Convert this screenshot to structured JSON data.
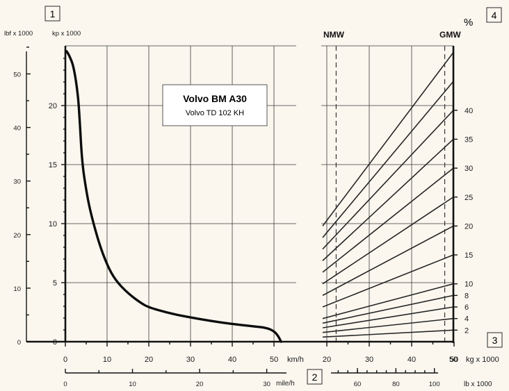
{
  "markers": {
    "m1": "1",
    "m2": "2",
    "m3": "3",
    "m4": "4"
  },
  "title": {
    "line1": "Volvo BM A30",
    "line2": "Volvo TD 102 KH"
  },
  "units": {
    "lbf": "lbf x 1000",
    "kp": "kp x 1000",
    "kmh": "km/h",
    "mileh": "mile/h",
    "kg": "kg x 1000",
    "lb": "lb x 1000",
    "pct": "%",
    "nmw": "NMW",
    "gmw": "GMW"
  },
  "chart_data": [
    {
      "type": "line",
      "name": "rimpull",
      "x_unit": "km/h",
      "y_unit": "kp x 1000",
      "xlim": [
        0,
        52
      ],
      "ylim": [
        0,
        25
      ],
      "x_ticks": [
        "0",
        "10",
        "20",
        "30",
        "40",
        "50"
      ],
      "y_ticks": [
        "0",
        "5",
        "10",
        "15",
        "20"
      ],
      "y2_unit": "lbf x 1000",
      "y2_ticks": [
        "0",
        "10",
        "20",
        "30",
        "40",
        "50"
      ],
      "x2_unit": "mile/h",
      "x2_ticks": [
        "0",
        "10",
        "20",
        "30"
      ],
      "points": [
        [
          0.3,
          24.6
        ],
        [
          1.0,
          24.2
        ],
        [
          2.0,
          23.3
        ],
        [
          3.0,
          21.0
        ],
        [
          3.4,
          19.0
        ],
        [
          4.0,
          15.2
        ],
        [
          5.0,
          12.8
        ],
        [
          6.0,
          11.0
        ],
        [
          8.0,
          8.4
        ],
        [
          10.0,
          6.5
        ],
        [
          12.0,
          5.2
        ],
        [
          15.0,
          4.1
        ],
        [
          18.0,
          3.3
        ],
        [
          20.0,
          2.9
        ],
        [
          25.0,
          2.4
        ],
        [
          30.0,
          2.05
        ],
        [
          35.0,
          1.75
        ],
        [
          40.0,
          1.5
        ],
        [
          45.0,
          1.3
        ],
        [
          48.0,
          1.2
        ],
        [
          50.0,
          0.9
        ],
        [
          51.0,
          0.5
        ],
        [
          51.7,
          0.0
        ]
      ]
    },
    {
      "type": "line",
      "name": "grade_lines",
      "x_unit": "kg x 1000",
      "xlim": [
        20,
        50
      ],
      "x_ticks": [
        "20",
        "30",
        "40",
        "50"
      ],
      "x2_unit": "lb x 1000",
      "x2_ticks": [
        "60",
        "80",
        "100"
      ],
      "y_unit": "%",
      "pct_labels": [
        {
          "text": "2",
          "pct": 2
        },
        {
          "text": "4",
          "pct": 4
        },
        {
          "text": "6",
          "pct": 6
        },
        {
          "text": "8",
          "pct": 8
        },
        {
          "text": "10",
          "pct": 10
        },
        {
          "text": "15",
          "pct": 15
        },
        {
          "text": "20",
          "pct": 20
        },
        {
          "text": "25",
          "pct": 25
        },
        {
          "text": "30",
          "pct": 30
        },
        {
          "text": "35",
          "pct": 35
        },
        {
          "text": "40",
          "pct": 40
        }
      ],
      "grade_percents": [
        2,
        4,
        6,
        8,
        10,
        15,
        20,
        25,
        30,
        35,
        40,
        45,
        50
      ],
      "nmw_kg": 22.2,
      "gmw_kg": 47.8
    }
  ]
}
